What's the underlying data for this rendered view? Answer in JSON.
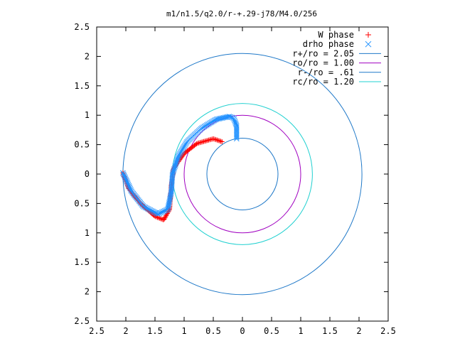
{
  "chart_data": {
    "type": "scatter",
    "title": "m1/n1.5/q2.0/r-+.29-j78/M4.0/256",
    "xlabel": "",
    "ylabel": "",
    "xlim": [
      -2.5,
      2.5
    ],
    "ylim": [
      -2.5,
      2.5
    ],
    "x_tick_values": [
      -2.5,
      -2,
      -1.5,
      -1,
      -0.5,
      0,
      0.5,
      1,
      1.5,
      2,
      2.5
    ],
    "x_tick_labels": [
      "2.5",
      "2",
      "1.5",
      "1",
      "0.5",
      "0",
      "0.5",
      "1",
      "1.5",
      "2",
      "2.5"
    ],
    "y_tick_values": [
      2.5,
      2,
      1.5,
      1,
      0.5,
      0,
      -0.5,
      -1,
      -1.5,
      -2,
      -2.5
    ],
    "y_tick_labels": [
      "2.5",
      "2",
      "1.5",
      "1",
      "0.5",
      "0",
      "0.5",
      "1",
      "1.5",
      "2",
      "2.5"
    ],
    "grid": false,
    "legend_position": "top-right",
    "series": [
      {
        "name": "W phase",
        "marker": "plus",
        "color": "#ff0000",
        "path": [
          [
            -2.05,
            0.02
          ],
          [
            -1.95,
            -0.25
          ],
          [
            -1.75,
            -0.5
          ],
          [
            -1.5,
            -0.72
          ],
          [
            -1.35,
            -0.78
          ],
          [
            -1.25,
            -0.6
          ],
          [
            -1.22,
            -0.2
          ],
          [
            -1.18,
            0.1
          ],
          [
            -1.0,
            0.35
          ],
          [
            -0.78,
            0.52
          ],
          [
            -0.5,
            0.6
          ],
          [
            -0.35,
            0.55
          ]
        ],
        "count": 140
      },
      {
        "name": "drho phase",
        "marker": "cross",
        "color": "#1e90ff",
        "path": [
          [
            -2.05,
            0.02
          ],
          [
            -1.9,
            -0.3
          ],
          [
            -1.7,
            -0.55
          ],
          [
            -1.45,
            -0.68
          ],
          [
            -1.28,
            -0.6
          ],
          [
            -1.22,
            -0.3
          ],
          [
            -1.2,
            0.0
          ],
          [
            -1.1,
            0.3
          ],
          [
            -0.95,
            0.55
          ],
          [
            -0.7,
            0.78
          ],
          [
            -0.45,
            0.93
          ],
          [
            -0.22,
            0.98
          ],
          [
            -0.15,
            0.95
          ],
          [
            -0.1,
            0.82
          ],
          [
            -0.1,
            0.6
          ]
        ],
        "count": 150
      }
    ],
    "circles": [
      {
        "name": "r+/ro = 2.05",
        "radius": 2.05,
        "color": "#1e78c8"
      },
      {
        "name": "ro/ro = 1.00",
        "radius": 1.0,
        "color": "#a000c0"
      },
      {
        "name": "r-/ro = .61",
        "radius": 0.61,
        "color": "#1e78c8"
      },
      {
        "name": "rc/ro = 1.20",
        "radius": 1.2,
        "color": "#20d0d0"
      }
    ]
  }
}
